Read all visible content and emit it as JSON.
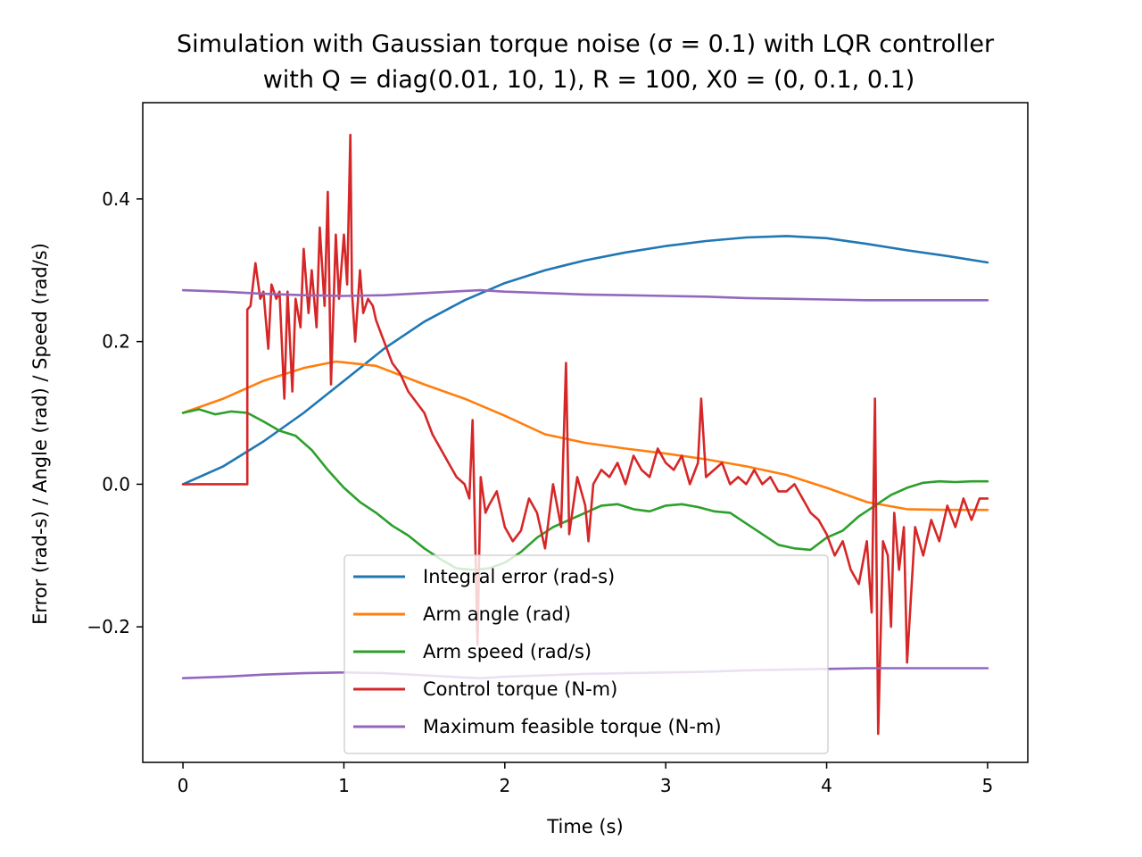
{
  "chart_data": {
    "type": "line",
    "title_line1": "Simulation with Gaussian torque noise (σ = 0.1) with LQR controller",
    "title_line2": "with Q = diag(0.01, 10, 1), R = 100, X0 = (0, 0.1, 0.1)",
    "xlabel": "Time (s)",
    "ylabel": "Error (rad-s) / Angle (rad) / Speed (rad/s)",
    "xlim": [
      -0.25,
      5.25
    ],
    "ylim": [
      -0.39,
      0.535
    ],
    "xticks": [
      0,
      1,
      2,
      3,
      4,
      5
    ],
    "xtick_labels": [
      "0",
      "1",
      "2",
      "3",
      "4",
      "5"
    ],
    "yticks": [
      -0.2,
      0.0,
      0.2,
      0.4
    ],
    "ytick_labels": [
      "−0.2",
      "0.0",
      "0.2",
      "0.4"
    ],
    "grid": false,
    "legend_position": "lower center",
    "series": [
      {
        "name": "Integral error (rad-s)",
        "color": "#1f77b4",
        "x": [
          0,
          0.25,
          0.5,
          0.75,
          1.0,
          1.25,
          1.5,
          1.75,
          2.0,
          2.25,
          2.5,
          2.75,
          3.0,
          3.25,
          3.5,
          3.75,
          4.0,
          4.25,
          4.5,
          4.75,
          5.0
        ],
        "y": [
          0.0,
          0.025,
          0.06,
          0.1,
          0.145,
          0.19,
          0.228,
          0.258,
          0.282,
          0.3,
          0.314,
          0.325,
          0.334,
          0.341,
          0.346,
          0.348,
          0.345,
          0.337,
          0.328,
          0.32,
          0.311
        ]
      },
      {
        "name": "Arm angle (rad)",
        "color": "#ff7f0e",
        "x": [
          0,
          0.25,
          0.5,
          0.75,
          0.95,
          1.2,
          1.5,
          1.75,
          2.0,
          2.25,
          2.5,
          2.75,
          3.0,
          3.25,
          3.5,
          3.75,
          4.0,
          4.25,
          4.5,
          4.75,
          5.0
        ],
        "y": [
          0.1,
          0.12,
          0.145,
          0.163,
          0.172,
          0.166,
          0.14,
          0.12,
          0.096,
          0.07,
          0.058,
          0.05,
          0.043,
          0.035,
          0.025,
          0.013,
          -0.005,
          -0.025,
          -0.035,
          -0.036,
          -0.036
        ]
      },
      {
        "name": "Arm speed (rad/s)",
        "color": "#2ca02c",
        "x": [
          0,
          0.1,
          0.2,
          0.3,
          0.4,
          0.5,
          0.6,
          0.7,
          0.8,
          0.9,
          1.0,
          1.1,
          1.2,
          1.3,
          1.4,
          1.5,
          1.6,
          1.7,
          1.8,
          1.9,
          2.0,
          2.1,
          2.2,
          2.3,
          2.4,
          2.5,
          2.6,
          2.7,
          2.8,
          2.9,
          3.0,
          3.1,
          3.2,
          3.3,
          3.4,
          3.5,
          3.6,
          3.7,
          3.8,
          3.9,
          4.0,
          4.1,
          4.2,
          4.3,
          4.4,
          4.5,
          4.6,
          4.7,
          4.8,
          4.9,
          5.0
        ],
        "y": [
          0.1,
          0.105,
          0.098,
          0.102,
          0.1,
          0.088,
          0.075,
          0.068,
          0.048,
          0.02,
          -0.005,
          -0.025,
          -0.04,
          -0.058,
          -0.072,
          -0.09,
          -0.105,
          -0.118,
          -0.12,
          -0.118,
          -0.11,
          -0.095,
          -0.075,
          -0.06,
          -0.05,
          -0.04,
          -0.03,
          -0.028,
          -0.035,
          -0.038,
          -0.03,
          -0.028,
          -0.032,
          -0.038,
          -0.04,
          -0.055,
          -0.07,
          -0.085,
          -0.09,
          -0.092,
          -0.075,
          -0.065,
          -0.045,
          -0.03,
          -0.015,
          -0.005,
          0.002,
          0.004,
          0.003,
          0.004,
          0.004
        ]
      },
      {
        "name": "Control torque (N-m)",
        "color": "#d62728",
        "x": [
          0,
          0.4,
          0.4,
          0.42,
          0.45,
          0.48,
          0.5,
          0.53,
          0.55,
          0.58,
          0.6,
          0.63,
          0.65,
          0.68,
          0.7,
          0.73,
          0.75,
          0.78,
          0.8,
          0.83,
          0.85,
          0.88,
          0.9,
          0.92,
          0.95,
          0.97,
          1.0,
          1.02,
          1.04,
          1.05,
          1.07,
          1.1,
          1.12,
          1.15,
          1.18,
          1.2,
          1.25,
          1.3,
          1.35,
          1.4,
          1.45,
          1.5,
          1.55,
          1.6,
          1.65,
          1.7,
          1.75,
          1.78,
          1.8,
          1.83,
          1.85,
          1.88,
          1.9,
          1.95,
          2.0,
          2.05,
          2.1,
          2.15,
          2.2,
          2.25,
          2.3,
          2.35,
          2.38,
          2.4,
          2.45,
          2.5,
          2.52,
          2.55,
          2.6,
          2.65,
          2.7,
          2.75,
          2.8,
          2.85,
          2.9,
          2.95,
          3.0,
          3.05,
          3.1,
          3.15,
          3.2,
          3.22,
          3.25,
          3.3,
          3.35,
          3.4,
          3.45,
          3.5,
          3.55,
          3.6,
          3.65,
          3.7,
          3.75,
          3.8,
          3.85,
          3.9,
          3.95,
          4.0,
          4.05,
          4.1,
          4.15,
          4.2,
          4.25,
          4.28,
          4.3,
          4.32,
          4.35,
          4.38,
          4.4,
          4.42,
          4.45,
          4.48,
          4.5,
          4.55,
          4.6,
          4.65,
          4.7,
          4.75,
          4.8,
          4.85,
          4.9,
          4.95,
          5.0
        ],
        "y": [
          0.0,
          0.0,
          0.245,
          0.25,
          0.31,
          0.26,
          0.27,
          0.19,
          0.28,
          0.26,
          0.27,
          0.12,
          0.27,
          0.13,
          0.26,
          0.22,
          0.33,
          0.24,
          0.3,
          0.22,
          0.36,
          0.25,
          0.41,
          0.14,
          0.35,
          0.26,
          0.35,
          0.28,
          0.49,
          0.27,
          0.2,
          0.3,
          0.24,
          0.26,
          0.25,
          0.23,
          0.2,
          0.17,
          0.155,
          0.13,
          0.115,
          0.1,
          0.07,
          0.05,
          0.03,
          0.01,
          0.0,
          -0.02,
          0.09,
          -0.225,
          0.01,
          -0.04,
          -0.03,
          -0.01,
          -0.06,
          -0.08,
          -0.065,
          -0.02,
          -0.04,
          -0.09,
          0.0,
          -0.06,
          0.17,
          -0.07,
          0.01,
          -0.03,
          -0.08,
          0.0,
          0.02,
          0.01,
          0.03,
          0.0,
          0.04,
          0.02,
          0.01,
          0.05,
          0.03,
          0.02,
          0.04,
          0.0,
          0.03,
          0.12,
          0.01,
          0.02,
          0.03,
          0.0,
          0.01,
          0.0,
          0.02,
          0.0,
          0.01,
          -0.01,
          -0.01,
          0.0,
          -0.02,
          -0.04,
          -0.05,
          -0.07,
          -0.1,
          -0.08,
          -0.12,
          -0.14,
          -0.08,
          -0.18,
          0.12,
          -0.35,
          -0.08,
          -0.1,
          -0.2,
          -0.04,
          -0.12,
          -0.06,
          -0.25,
          -0.06,
          -0.1,
          -0.05,
          -0.08,
          -0.03,
          -0.06,
          -0.02,
          -0.05,
          -0.02,
          -0.02
        ]
      },
      {
        "name": "Maximum feasible torque (N-m)",
        "color": "#9467bd",
        "x": [
          0,
          0.25,
          0.5,
          0.75,
          1.0,
          1.25,
          1.5,
          1.75,
          1.85,
          2.0,
          2.25,
          2.5,
          2.75,
          3.0,
          3.25,
          3.5,
          3.75,
          4.0,
          4.25,
          4.5,
          4.75,
          5.0
        ],
        "y": [
          0.272,
          0.27,
          0.267,
          0.265,
          0.264,
          0.265,
          0.268,
          0.271,
          0.272,
          0.27,
          0.268,
          0.266,
          0.265,
          0.264,
          0.263,
          0.261,
          0.26,
          0.259,
          0.258,
          0.258,
          0.258,
          0.258
        ]
      },
      {
        "name": "",
        "color": "#9467bd",
        "x": [
          0,
          0.25,
          0.5,
          0.75,
          1.0,
          1.25,
          1.5,
          1.75,
          1.85,
          2.0,
          2.25,
          2.5,
          2.75,
          3.0,
          3.25,
          3.5,
          3.75,
          4.0,
          4.25,
          4.5,
          4.75,
          5.0
        ],
        "y": [
          -0.272,
          -0.27,
          -0.267,
          -0.265,
          -0.264,
          -0.265,
          -0.268,
          -0.271,
          -0.272,
          -0.27,
          -0.268,
          -0.266,
          -0.265,
          -0.264,
          -0.263,
          -0.261,
          -0.26,
          -0.259,
          -0.258,
          -0.258,
          -0.258,
          -0.258
        ]
      }
    ]
  }
}
